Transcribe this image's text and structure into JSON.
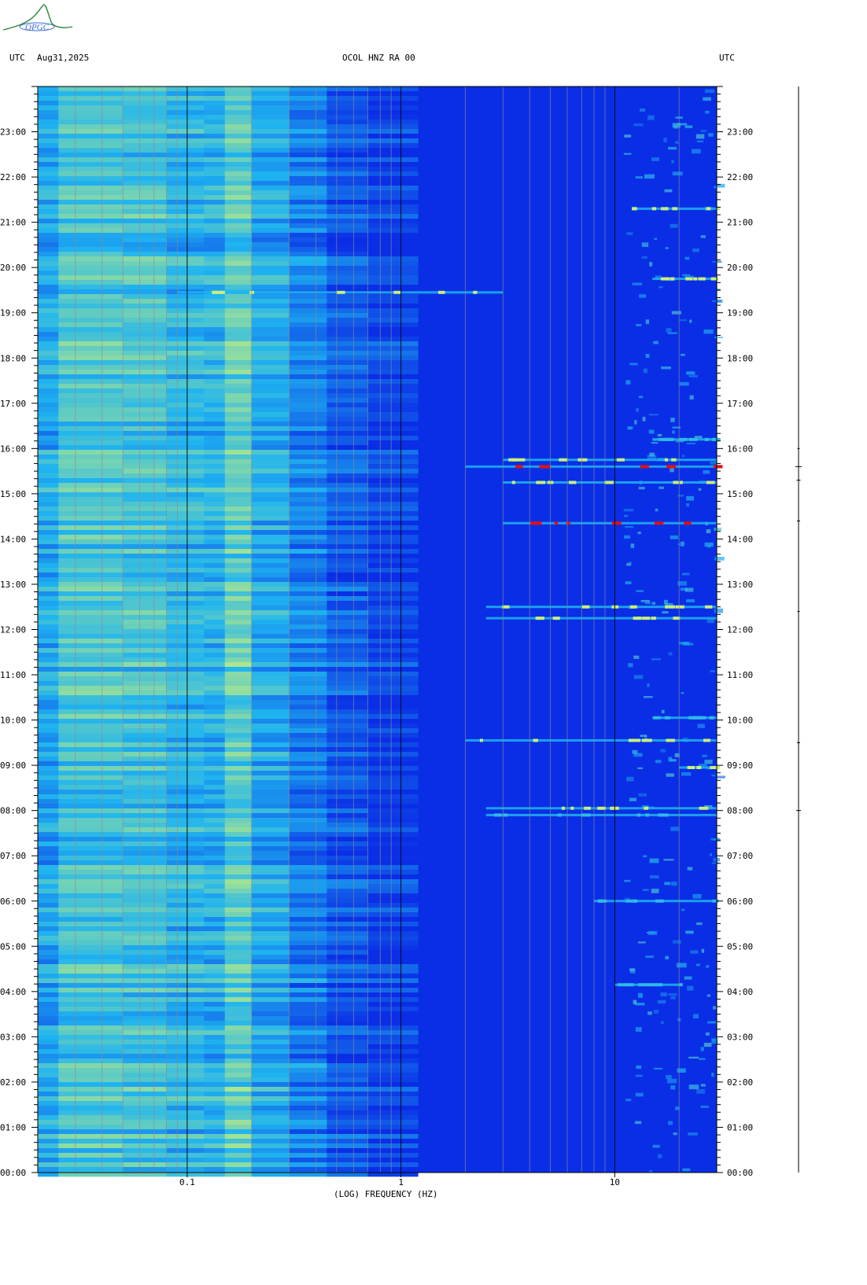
{
  "header": {
    "left_tz": "UTC",
    "date": "Aug31,2025",
    "station": "OCOL HNZ RA 00",
    "right_tz": "UTC"
  },
  "logo": {
    "text": "OPGC"
  },
  "chart_data": {
    "type": "heatmap",
    "xlabel": "(LOG) FREQUENCY (HZ)",
    "x_scale": "log",
    "xlim": [
      0.02,
      30
    ],
    "x_ticks": [
      {
        "value": 0.1,
        "label": "0.1"
      },
      {
        "value": 1,
        "label": "1"
      },
      {
        "value": 10,
        "label": "10"
      }
    ],
    "y_ticks": [
      "23:00",
      "22:00",
      "21:00",
      "20:00",
      "19:00",
      "18:00",
      "17:00",
      "16:00",
      "15:00",
      "14:00",
      "13:00",
      "12:00",
      "11:00",
      "10:00",
      "09:00",
      "08:00",
      "07:00",
      "06:00",
      "05:00",
      "04:00",
      "03:00",
      "02:00",
      "01:00",
      "00:00"
    ],
    "ylim_hours": [
      0,
      24
    ],
    "colors": {
      "background": "#0a2ee6",
      "low": "#0a2ee6",
      "mid": "#1fb4f0",
      "high": "#c8f07a",
      "peak": "#e01010"
    },
    "events": [
      {
        "hour": 19.45,
        "fmin": 0.09,
        "fmax": 3,
        "intensity": "high"
      },
      {
        "hour": 19.75,
        "fmin": 15,
        "fmax": 30,
        "intensity": "high"
      },
      {
        "hour": 21.3,
        "fmin": 12,
        "fmax": 30,
        "intensity": "high"
      },
      {
        "hour": 15.6,
        "fmin": 2,
        "fmax": 30,
        "intensity": "peak"
      },
      {
        "hour": 15.75,
        "fmin": 3,
        "fmax": 30,
        "intensity": "high"
      },
      {
        "hour": 15.25,
        "fmin": 3,
        "fmax": 30,
        "intensity": "high"
      },
      {
        "hour": 14.35,
        "fmin": 3,
        "fmax": 30,
        "intensity": "peak"
      },
      {
        "hour": 12.5,
        "fmin": 2.5,
        "fmax": 30,
        "intensity": "high"
      },
      {
        "hour": 12.25,
        "fmin": 2.5,
        "fmax": 30,
        "intensity": "high"
      },
      {
        "hour": 9.55,
        "fmin": 2,
        "fmax": 30,
        "intensity": "high"
      },
      {
        "hour": 8.05,
        "fmin": 2.5,
        "fmax": 30,
        "intensity": "high"
      },
      {
        "hour": 7.9,
        "fmin": 2.5,
        "fmax": 30,
        "intensity": "mid"
      },
      {
        "hour": 8.95,
        "fmin": 20,
        "fmax": 30,
        "intensity": "high"
      },
      {
        "hour": 10.05,
        "fmin": 15,
        "fmax": 30,
        "intensity": "mid"
      },
      {
        "hour": 16.2,
        "fmin": 15,
        "fmax": 30,
        "intensity": "mid"
      },
      {
        "hour": 6.0,
        "fmin": 8,
        "fmax": 30,
        "intensity": "mid"
      },
      {
        "hour": 4.15,
        "fmin": 10,
        "fmax": 20,
        "intensity": "mid"
      }
    ]
  }
}
